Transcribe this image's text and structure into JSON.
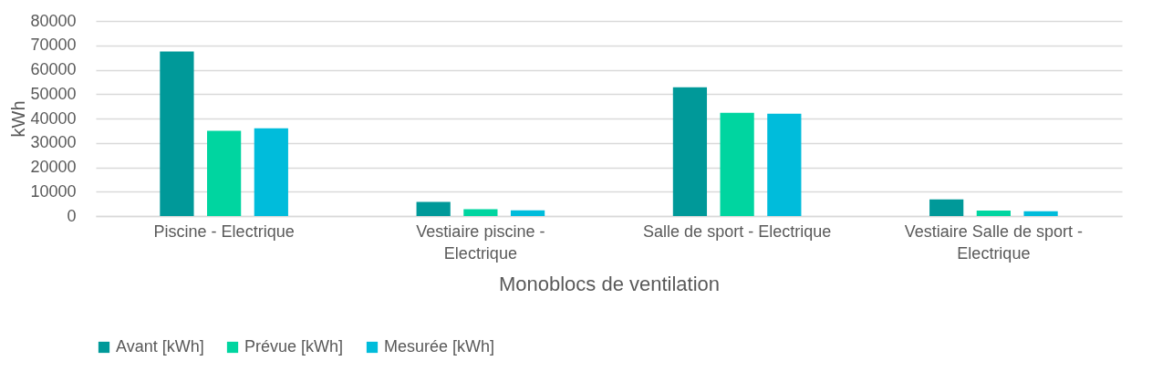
{
  "chart_data": {
    "type": "bar",
    "xlabel": "Monoblocs de ventilation",
    "ylabel": "kWh",
    "categories": [
      "Piscine - Electrique",
      "Vestiaire piscine - Electrique",
      "Salle de sport - Electrique",
      "Vestiaire Salle de sport - Electrique"
    ],
    "series": [
      {
        "name": "Avant [kWh]",
        "color": "#009999",
        "values": [
          67500,
          5800,
          52800,
          6800
        ]
      },
      {
        "name": "Prévue [kWh]",
        "color": "#00d5a0",
        "values": [
          35000,
          2800,
          42300,
          2200
        ]
      },
      {
        "name": "Mesurée [kWh]",
        "color": "#00bcdb",
        "values": [
          36000,
          2300,
          42000,
          2000
        ]
      }
    ],
    "ylim": [
      0,
      80000
    ],
    "yticks": [
      0,
      10000,
      20000,
      30000,
      40000,
      50000,
      60000,
      70000,
      80000
    ],
    "grid": "y",
    "legend": "bottom"
  }
}
